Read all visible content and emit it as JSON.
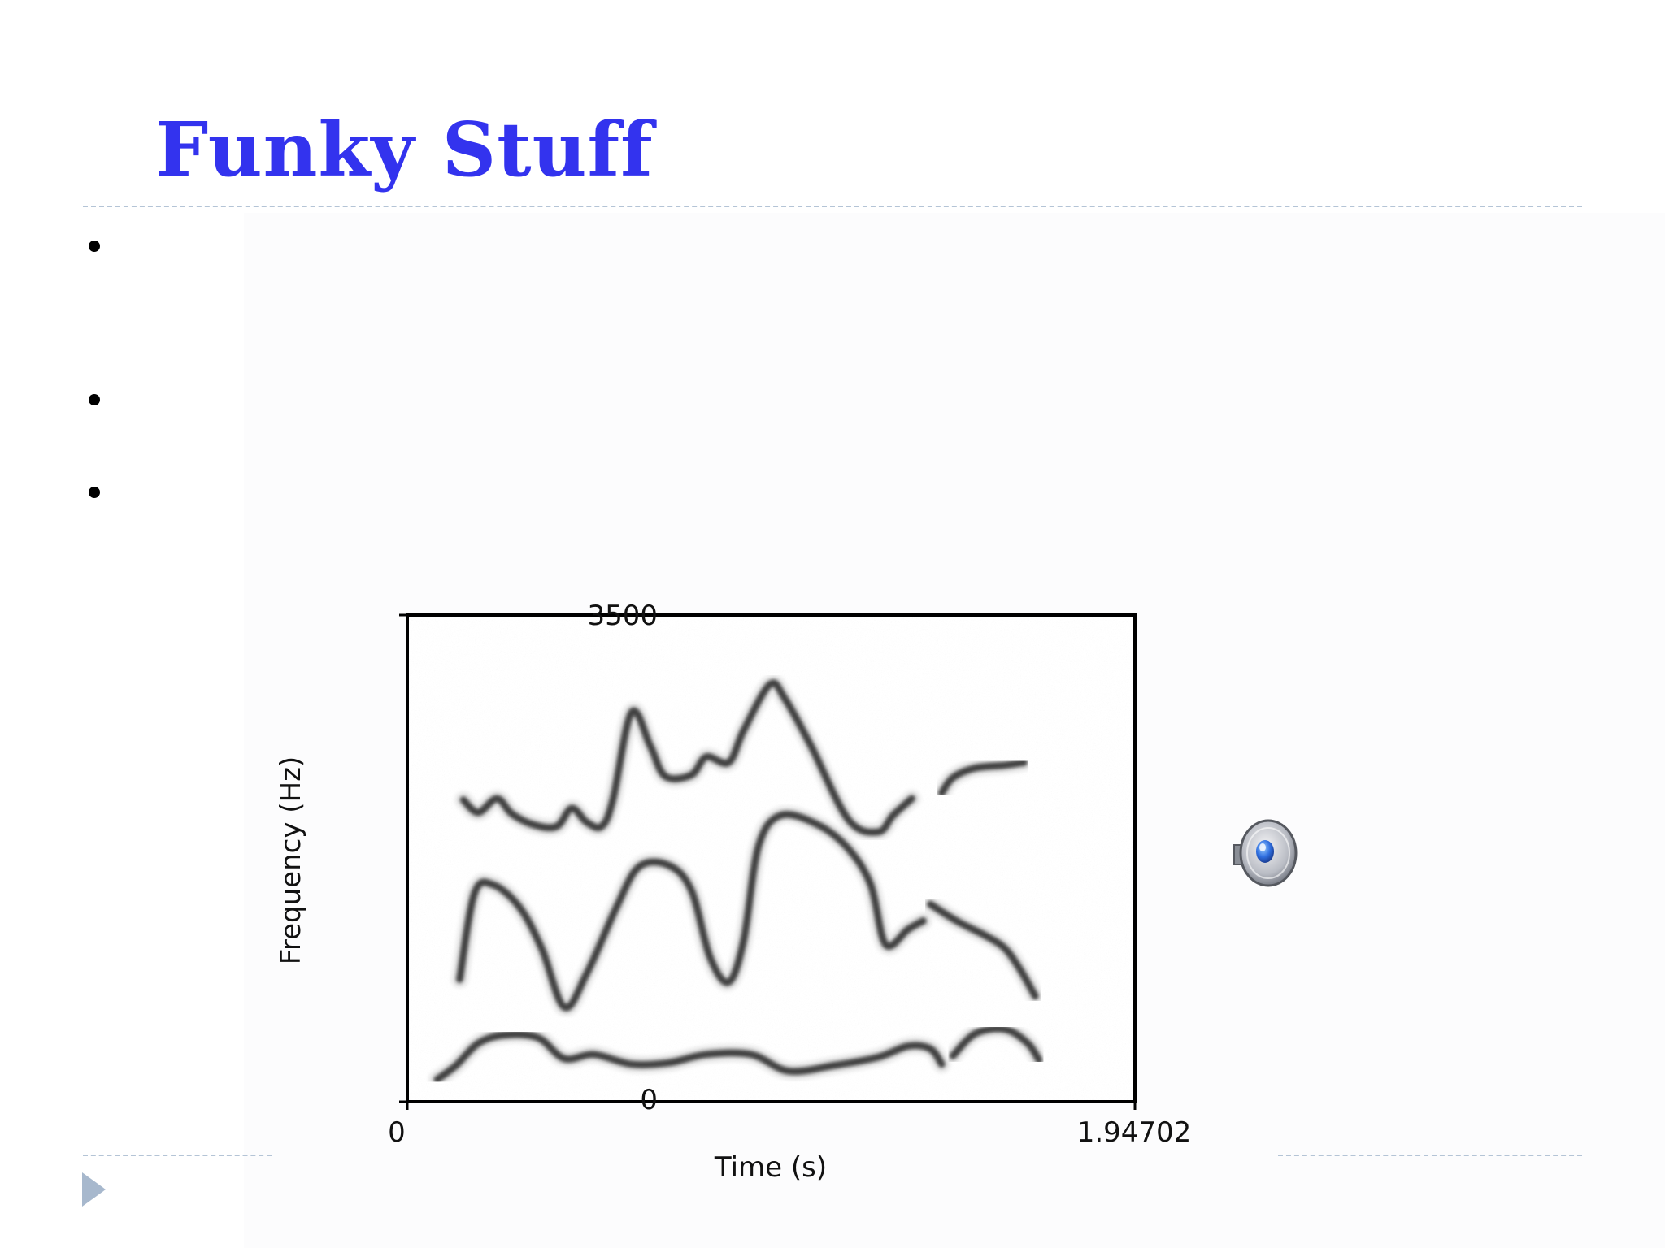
{
  "slide": {
    "title": "Funky Stuff"
  },
  "spectrogram": {
    "y_axis_title": "Frequency (Hz)",
    "x_axis_title": "Time (s)",
    "y_min_label": "0",
    "y_max_label": "3500",
    "x_min_label": "0",
    "x_max_label": "1.94702",
    "y_range": [
      0,
      3500
    ],
    "x_range": [
      0,
      1.94702
    ],
    "formant_tracks": [
      {
        "points": [
          [
            0.15,
            2170
          ],
          [
            0.19,
            2080
          ],
          [
            0.24,
            2180
          ],
          [
            0.28,
            2070
          ],
          [
            0.34,
            1990
          ],
          [
            0.4,
            1980
          ],
          [
            0.44,
            2110
          ],
          [
            0.48,
            2010
          ],
          [
            0.52,
            1980
          ],
          [
            0.55,
            2170
          ],
          [
            0.6,
            2800
          ],
          [
            0.65,
            2560
          ],
          [
            0.69,
            2340
          ],
          [
            0.76,
            2350
          ],
          [
            0.8,
            2480
          ],
          [
            0.86,
            2440
          ],
          [
            0.9,
            2670
          ],
          [
            0.97,
            3000
          ],
          [
            1.01,
            2900
          ],
          [
            1.08,
            2560
          ],
          [
            1.18,
            2030
          ],
          [
            1.26,
            1940
          ],
          [
            1.3,
            2060
          ],
          [
            1.35,
            2180
          ]
        ]
      },
      {
        "points": [
          [
            1.43,
            2220
          ],
          [
            1.46,
            2330
          ],
          [
            1.52,
            2400
          ],
          [
            1.6,
            2420
          ],
          [
            1.65,
            2440
          ]
        ]
      },
      {
        "points": [
          [
            0.14,
            880
          ],
          [
            0.18,
            1500
          ],
          [
            0.23,
            1560
          ],
          [
            0.3,
            1400
          ],
          [
            0.36,
            1100
          ],
          [
            0.42,
            680
          ],
          [
            0.48,
            920
          ],
          [
            0.56,
            1400
          ],
          [
            0.62,
            1690
          ],
          [
            0.7,
            1700
          ],
          [
            0.76,
            1520
          ],
          [
            0.81,
            1040
          ],
          [
            0.86,
            860
          ],
          [
            0.9,
            1160
          ],
          [
            0.94,
            1840
          ],
          [
            1.0,
            2060
          ],
          [
            1.1,
            1990
          ],
          [
            1.18,
            1820
          ],
          [
            1.24,
            1560
          ],
          [
            1.28,
            1130
          ],
          [
            1.34,
            1240
          ],
          [
            1.38,
            1300
          ]
        ]
      },
      {
        "points": [
          [
            1.4,
            1420
          ],
          [
            1.47,
            1300
          ],
          [
            1.55,
            1190
          ],
          [
            1.6,
            1100
          ],
          [
            1.64,
            950
          ],
          [
            1.68,
            760
          ]
        ]
      },
      {
        "points": [
          [
            0.08,
            160
          ],
          [
            0.13,
            260
          ],
          [
            0.19,
            420
          ],
          [
            0.26,
            480
          ],
          [
            0.35,
            460
          ],
          [
            0.42,
            310
          ],
          [
            0.5,
            340
          ],
          [
            0.6,
            270
          ],
          [
            0.7,
            280
          ],
          [
            0.8,
            340
          ],
          [
            0.92,
            340
          ],
          [
            1.02,
            220
          ],
          [
            1.14,
            260
          ],
          [
            1.26,
            320
          ],
          [
            1.34,
            400
          ],
          [
            1.4,
            380
          ],
          [
            1.43,
            270
          ]
        ]
      },
      {
        "points": [
          [
            1.46,
            330
          ],
          [
            1.52,
            490
          ],
          [
            1.6,
            520
          ],
          [
            1.66,
            420
          ],
          [
            1.69,
            300
          ]
        ]
      }
    ]
  },
  "speaker": {
    "icon": "speaker-icon",
    "accent": "#2f6fe0"
  }
}
